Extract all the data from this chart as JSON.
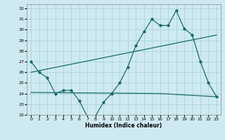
{
  "xlabel": "Humidex (Indice chaleur)",
  "background_color": "#ceeaf0",
  "grid_color": "#aad4dc",
  "line_color": "#1a6b6b",
  "xlim": [
    -0.5,
    23.5
  ],
  "ylim": [
    22,
    32.4
  ],
  "yticks": [
    22,
    23,
    24,
    25,
    26,
    27,
    28,
    29,
    30,
    31,
    32
  ],
  "xticks": [
    0,
    1,
    2,
    3,
    4,
    5,
    6,
    7,
    8,
    9,
    10,
    11,
    12,
    13,
    14,
    15,
    16,
    17,
    18,
    19,
    20,
    21,
    22,
    23
  ],
  "xtick_labels": [
    "0",
    "1",
    "2",
    "3",
    "4",
    "5",
    "6",
    "7",
    "8",
    "9",
    "10",
    "11",
    "12",
    "13",
    "14",
    "15",
    "16",
    "17",
    "18",
    "19",
    "20",
    "21",
    "22",
    "23"
  ],
  "line1_x": [
    0,
    1,
    2,
    3,
    4,
    5,
    6,
    7,
    8,
    9,
    10,
    11,
    12,
    13,
    14,
    15,
    16,
    17,
    18,
    19,
    20,
    21,
    22,
    23
  ],
  "line1_y": [
    27.0,
    26.0,
    25.5,
    24.0,
    24.3,
    24.3,
    23.3,
    21.8,
    21.9,
    23.2,
    24.0,
    25.0,
    26.5,
    28.5,
    29.8,
    31.0,
    30.4,
    30.4,
    31.8,
    30.1,
    29.5,
    27.0,
    25.0,
    23.7
  ],
  "line2_x": [
    0,
    23
  ],
  "line2_y": [
    26.0,
    29.5
  ],
  "line3_x": [
    0,
    16,
    23
  ],
  "line3_y": [
    24.1,
    24.0,
    23.7
  ]
}
